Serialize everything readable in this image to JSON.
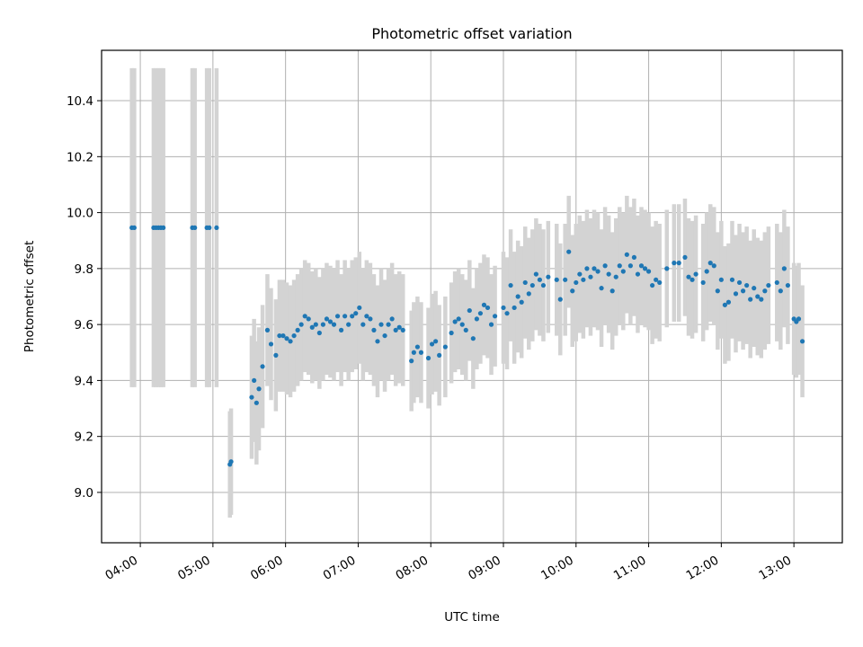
{
  "chart_data": {
    "type": "scatter",
    "title": "Photometric offset variation",
    "xlabel": "UTC time",
    "ylabel": "Photometric offset",
    "x_axis_type": "time (hours, UTC)",
    "xlim": [
      "03:28",
      "13:40"
    ],
    "ylim": [
      8.82,
      10.58
    ],
    "x_ticks": [
      "04:00",
      "05:00",
      "06:00",
      "07:00",
      "08:00",
      "09:00",
      "10:00",
      "11:00",
      "12:00",
      "13:00"
    ],
    "y_ticks": [
      "9.0",
      "9.2",
      "9.4",
      "9.6",
      "9.8",
      "10.0",
      "10.2",
      "10.4"
    ],
    "grid": true,
    "series_style": {
      "marker_color": "#1f77b4",
      "errorbar_color": "#d3d3d3"
    },
    "points": [
      {
        "x": "03:53",
        "y": 9.946,
        "err": 0.57
      },
      {
        "x": "03:55",
        "y": 9.946,
        "err": 0.57
      },
      {
        "x": "04:11",
        "y": 9.946,
        "err": 0.57
      },
      {
        "x": "04:13",
        "y": 9.946,
        "err": 0.57
      },
      {
        "x": "04:15",
        "y": 9.946,
        "err": 0.57
      },
      {
        "x": "04:17",
        "y": 9.946,
        "err": 0.57
      },
      {
        "x": "04:19",
        "y": 9.946,
        "err": 0.57
      },
      {
        "x": "04:43",
        "y": 9.946,
        "err": 0.57
      },
      {
        "x": "04:45",
        "y": 9.946,
        "err": 0.57
      },
      {
        "x": "04:55",
        "y": 9.946,
        "err": 0.57
      },
      {
        "x": "04:57",
        "y": 9.946,
        "err": 0.57
      },
      {
        "x": "05:03",
        "y": 9.946,
        "err": 0.57
      },
      {
        "x": "05:14",
        "y": 9.1,
        "err": 0.19
      },
      {
        "x": "05:15",
        "y": 9.11,
        "err": 0.19
      },
      {
        "x": "05:32",
        "y": 9.34,
        "err": 0.22
      },
      {
        "x": "05:34",
        "y": 9.4,
        "err": 0.22
      },
      {
        "x": "05:36",
        "y": 9.32,
        "err": 0.22
      },
      {
        "x": "05:38",
        "y": 9.37,
        "err": 0.22
      },
      {
        "x": "05:41",
        "y": 9.45,
        "err": 0.22
      },
      {
        "x": "05:45",
        "y": 9.58,
        "err": 0.2
      },
      {
        "x": "05:48",
        "y": 9.53,
        "err": 0.2
      },
      {
        "x": "05:52",
        "y": 9.49,
        "err": 0.2
      },
      {
        "x": "05:55",
        "y": 9.56,
        "err": 0.2
      },
      {
        "x": "05:58",
        "y": 9.56,
        "err": 0.2
      },
      {
        "x": "06:01",
        "y": 9.55,
        "err": 0.2
      },
      {
        "x": "06:04",
        "y": 9.54,
        "err": 0.2
      },
      {
        "x": "06:07",
        "y": 9.56,
        "err": 0.2
      },
      {
        "x": "06:10",
        "y": 9.58,
        "err": 0.2
      },
      {
        "x": "06:13",
        "y": 9.6,
        "err": 0.2
      },
      {
        "x": "06:16",
        "y": 9.63,
        "err": 0.2
      },
      {
        "x": "06:19",
        "y": 9.62,
        "err": 0.2
      },
      {
        "x": "06:22",
        "y": 9.59,
        "err": 0.2
      },
      {
        "x": "06:25",
        "y": 9.6,
        "err": 0.2
      },
      {
        "x": "06:28",
        "y": 9.57,
        "err": 0.2
      },
      {
        "x": "06:31",
        "y": 9.6,
        "err": 0.2
      },
      {
        "x": "06:34",
        "y": 9.62,
        "err": 0.2
      },
      {
        "x": "06:37",
        "y": 9.61,
        "err": 0.2
      },
      {
        "x": "06:40",
        "y": 9.6,
        "err": 0.2
      },
      {
        "x": "06:43",
        "y": 9.63,
        "err": 0.2
      },
      {
        "x": "06:46",
        "y": 9.58,
        "err": 0.2
      },
      {
        "x": "06:49",
        "y": 9.63,
        "err": 0.2
      },
      {
        "x": "06:52",
        "y": 9.6,
        "err": 0.2
      },
      {
        "x": "06:55",
        "y": 9.63,
        "err": 0.2
      },
      {
        "x": "06:58",
        "y": 9.64,
        "err": 0.2
      },
      {
        "x": "07:01",
        "y": 9.66,
        "err": 0.2
      },
      {
        "x": "07:04",
        "y": 9.6,
        "err": 0.2
      },
      {
        "x": "07:07",
        "y": 9.63,
        "err": 0.2
      },
      {
        "x": "07:10",
        "y": 9.62,
        "err": 0.2
      },
      {
        "x": "07:13",
        "y": 9.58,
        "err": 0.2
      },
      {
        "x": "07:16",
        "y": 9.54,
        "err": 0.2
      },
      {
        "x": "07:19",
        "y": 9.6,
        "err": 0.2
      },
      {
        "x": "07:22",
        "y": 9.56,
        "err": 0.2
      },
      {
        "x": "07:25",
        "y": 9.6,
        "err": 0.2
      },
      {
        "x": "07:28",
        "y": 9.62,
        "err": 0.2
      },
      {
        "x": "07:31",
        "y": 9.58,
        "err": 0.2
      },
      {
        "x": "07:34",
        "y": 9.59,
        "err": 0.2
      },
      {
        "x": "07:37",
        "y": 9.58,
        "err": 0.2
      },
      {
        "x": "07:44",
        "y": 9.47,
        "err": 0.18
      },
      {
        "x": "07:46",
        "y": 9.5,
        "err": 0.18
      },
      {
        "x": "07:49",
        "y": 9.52,
        "err": 0.18
      },
      {
        "x": "07:52",
        "y": 9.5,
        "err": 0.18
      },
      {
        "x": "07:58",
        "y": 9.48,
        "err": 0.18
      },
      {
        "x": "08:01",
        "y": 9.53,
        "err": 0.18
      },
      {
        "x": "08:04",
        "y": 9.54,
        "err": 0.18
      },
      {
        "x": "08:07",
        "y": 9.49,
        "err": 0.18
      },
      {
        "x": "08:12",
        "y": 9.52,
        "err": 0.18
      },
      {
        "x": "08:17",
        "y": 9.57,
        "err": 0.18
      },
      {
        "x": "08:20",
        "y": 9.61,
        "err": 0.18
      },
      {
        "x": "08:23",
        "y": 9.62,
        "err": 0.18
      },
      {
        "x": "08:26",
        "y": 9.6,
        "err": 0.18
      },
      {
        "x": "08:29",
        "y": 9.58,
        "err": 0.18
      },
      {
        "x": "08:32",
        "y": 9.65,
        "err": 0.18
      },
      {
        "x": "08:35",
        "y": 9.55,
        "err": 0.18
      },
      {
        "x": "08:38",
        "y": 9.62,
        "err": 0.18
      },
      {
        "x": "08:41",
        "y": 9.64,
        "err": 0.18
      },
      {
        "x": "08:44",
        "y": 9.67,
        "err": 0.18
      },
      {
        "x": "08:47",
        "y": 9.66,
        "err": 0.18
      },
      {
        "x": "08:50",
        "y": 9.6,
        "err": 0.18
      },
      {
        "x": "08:53",
        "y": 9.63,
        "err": 0.18
      },
      {
        "x": "09:00",
        "y": 9.66,
        "err": 0.2
      },
      {
        "x": "09:03",
        "y": 9.64,
        "err": 0.2
      },
      {
        "x": "09:06",
        "y": 9.74,
        "err": 0.2
      },
      {
        "x": "09:09",
        "y": 9.66,
        "err": 0.2
      },
      {
        "x": "09:12",
        "y": 9.7,
        "err": 0.2
      },
      {
        "x": "09:15",
        "y": 9.68,
        "err": 0.2
      },
      {
        "x": "09:18",
        "y": 9.75,
        "err": 0.2
      },
      {
        "x": "09:21",
        "y": 9.71,
        "err": 0.2
      },
      {
        "x": "09:24",
        "y": 9.74,
        "err": 0.2
      },
      {
        "x": "09:27",
        "y": 9.78,
        "err": 0.2
      },
      {
        "x": "09:30",
        "y": 9.76,
        "err": 0.2
      },
      {
        "x": "09:33",
        "y": 9.74,
        "err": 0.2
      },
      {
        "x": "09:37",
        "y": 9.77,
        "err": 0.2
      },
      {
        "x": "09:44",
        "y": 9.76,
        "err": 0.2
      },
      {
        "x": "09:47",
        "y": 9.69,
        "err": 0.2
      },
      {
        "x": "09:51",
        "y": 9.76,
        "err": 0.2
      },
      {
        "x": "09:54",
        "y": 9.86,
        "err": 0.2
      },
      {
        "x": "09:57",
        "y": 9.72,
        "err": 0.2
      },
      {
        "x": "10:00",
        "y": 9.75,
        "err": 0.21
      },
      {
        "x": "10:03",
        "y": 9.78,
        "err": 0.21
      },
      {
        "x": "10:06",
        "y": 9.76,
        "err": 0.21
      },
      {
        "x": "10:09",
        "y": 9.8,
        "err": 0.21
      },
      {
        "x": "10:12",
        "y": 9.77,
        "err": 0.21
      },
      {
        "x": "10:15",
        "y": 9.8,
        "err": 0.21
      },
      {
        "x": "10:18",
        "y": 9.79,
        "err": 0.21
      },
      {
        "x": "10:21",
        "y": 9.73,
        "err": 0.21
      },
      {
        "x": "10:24",
        "y": 9.81,
        "err": 0.21
      },
      {
        "x": "10:27",
        "y": 9.78,
        "err": 0.21
      },
      {
        "x": "10:30",
        "y": 9.72,
        "err": 0.21
      },
      {
        "x": "10:33",
        "y": 9.77,
        "err": 0.21
      },
      {
        "x": "10:36",
        "y": 9.81,
        "err": 0.21
      },
      {
        "x": "10:39",
        "y": 9.79,
        "err": 0.21
      },
      {
        "x": "10:42",
        "y": 9.85,
        "err": 0.21
      },
      {
        "x": "10:45",
        "y": 9.81,
        "err": 0.21
      },
      {
        "x": "10:48",
        "y": 9.84,
        "err": 0.21
      },
      {
        "x": "10:51",
        "y": 9.78,
        "err": 0.21
      },
      {
        "x": "10:54",
        "y": 9.81,
        "err": 0.21
      },
      {
        "x": "10:57",
        "y": 9.8,
        "err": 0.21
      },
      {
        "x": "11:00",
        "y": 9.79,
        "err": 0.21
      },
      {
        "x": "11:03",
        "y": 9.74,
        "err": 0.21
      },
      {
        "x": "11:06",
        "y": 9.76,
        "err": 0.21
      },
      {
        "x": "11:09",
        "y": 9.75,
        "err": 0.21
      },
      {
        "x": "11:15",
        "y": 9.8,
        "err": 0.21
      },
      {
        "x": "11:21",
        "y": 9.82,
        "err": 0.21
      },
      {
        "x": "11:25",
        "y": 9.82,
        "err": 0.21
      },
      {
        "x": "11:30",
        "y": 9.84,
        "err": 0.21
      },
      {
        "x": "11:33",
        "y": 9.77,
        "err": 0.21
      },
      {
        "x": "11:36",
        "y": 9.76,
        "err": 0.21
      },
      {
        "x": "11:39",
        "y": 9.78,
        "err": 0.21
      },
      {
        "x": "11:45",
        "y": 9.75,
        "err": 0.21
      },
      {
        "x": "11:48",
        "y": 9.79,
        "err": 0.21
      },
      {
        "x": "11:51",
        "y": 9.82,
        "err": 0.21
      },
      {
        "x": "11:54",
        "y": 9.81,
        "err": 0.21
      },
      {
        "x": "11:57",
        "y": 9.72,
        "err": 0.21
      },
      {
        "x": "12:00",
        "y": 9.76,
        "err": 0.21
      },
      {
        "x": "12:03",
        "y": 9.67,
        "err": 0.21
      },
      {
        "x": "12:06",
        "y": 9.68,
        "err": 0.21
      },
      {
        "x": "12:09",
        "y": 9.76,
        "err": 0.21
      },
      {
        "x": "12:12",
        "y": 9.71,
        "err": 0.21
      },
      {
        "x": "12:15",
        "y": 9.75,
        "err": 0.21
      },
      {
        "x": "12:18",
        "y": 9.72,
        "err": 0.21
      },
      {
        "x": "12:21",
        "y": 9.74,
        "err": 0.21
      },
      {
        "x": "12:24",
        "y": 9.69,
        "err": 0.21
      },
      {
        "x": "12:27",
        "y": 9.73,
        "err": 0.21
      },
      {
        "x": "12:30",
        "y": 9.7,
        "err": 0.21
      },
      {
        "x": "12:33",
        "y": 9.69,
        "err": 0.21
      },
      {
        "x": "12:36",
        "y": 9.72,
        "err": 0.21
      },
      {
        "x": "12:39",
        "y": 9.74,
        "err": 0.21
      },
      {
        "x": "12:46",
        "y": 9.75,
        "err": 0.21
      },
      {
        "x": "12:49",
        "y": 9.72,
        "err": 0.21
      },
      {
        "x": "12:52",
        "y": 9.8,
        "err": 0.21
      },
      {
        "x": "12:55",
        "y": 9.74,
        "err": 0.21
      },
      {
        "x": "13:00",
        "y": 9.62,
        "err": 0.2
      },
      {
        "x": "13:02",
        "y": 9.61,
        "err": 0.2
      },
      {
        "x": "13:04",
        "y": 9.62,
        "err": 0.2
      },
      {
        "x": "13:07",
        "y": 9.54,
        "err": 0.2
      }
    ]
  }
}
